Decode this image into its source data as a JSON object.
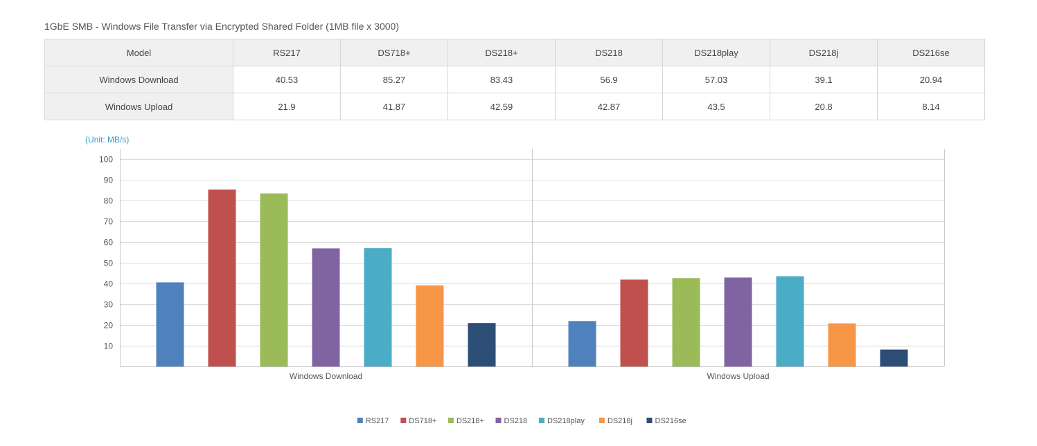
{
  "title": "1GbE SMB - Windows File Transfer via Encrypted Shared Folder (1MB file x 3000)",
  "table": {
    "header": [
      "Model",
      "RS217",
      "DS718+",
      "DS218+",
      "DS218",
      "DS218play",
      "DS218j",
      "DS216se"
    ],
    "rows": [
      [
        "Windows Download",
        "40.53",
        "85.27",
        "83.43",
        "56.9",
        "57.03",
        "39.1",
        "20.94"
      ],
      [
        "Windows Upload",
        "21.9",
        "41.87",
        "42.59",
        "42.87",
        "43.5",
        "20.8",
        "8.14"
      ]
    ]
  },
  "chart_data": {
    "type": "bar",
    "unit_label": "(Unit: MB/s)",
    "categories": [
      "Windows Download",
      "Windows Upload"
    ],
    "series": [
      {
        "name": "RS217",
        "color": "#4f81bd",
        "values": [
          40.53,
          21.9
        ]
      },
      {
        "name": "DS718+",
        "color": "#c0504d",
        "values": [
          85.27,
          41.87
        ]
      },
      {
        "name": "DS218+",
        "color": "#9bbb59",
        "values": [
          83.43,
          42.59
        ]
      },
      {
        "name": "DS218",
        "color": "#8064a2",
        "values": [
          56.9,
          42.87
        ]
      },
      {
        "name": "DS218play",
        "color": "#4bacc6",
        "values": [
          57.03,
          43.5
        ]
      },
      {
        "name": "DS218j",
        "color": "#f79646",
        "values": [
          39.1,
          20.8
        ]
      },
      {
        "name": "DS216se",
        "color": "#2c4d75",
        "values": [
          20.94,
          8.14
        ]
      }
    ],
    "ylim": [
      0,
      100
    ],
    "yticks": [
      10,
      20,
      30,
      40,
      50,
      60,
      70,
      80,
      90,
      100
    ],
    "grid": true,
    "legend_position": "bottom"
  }
}
